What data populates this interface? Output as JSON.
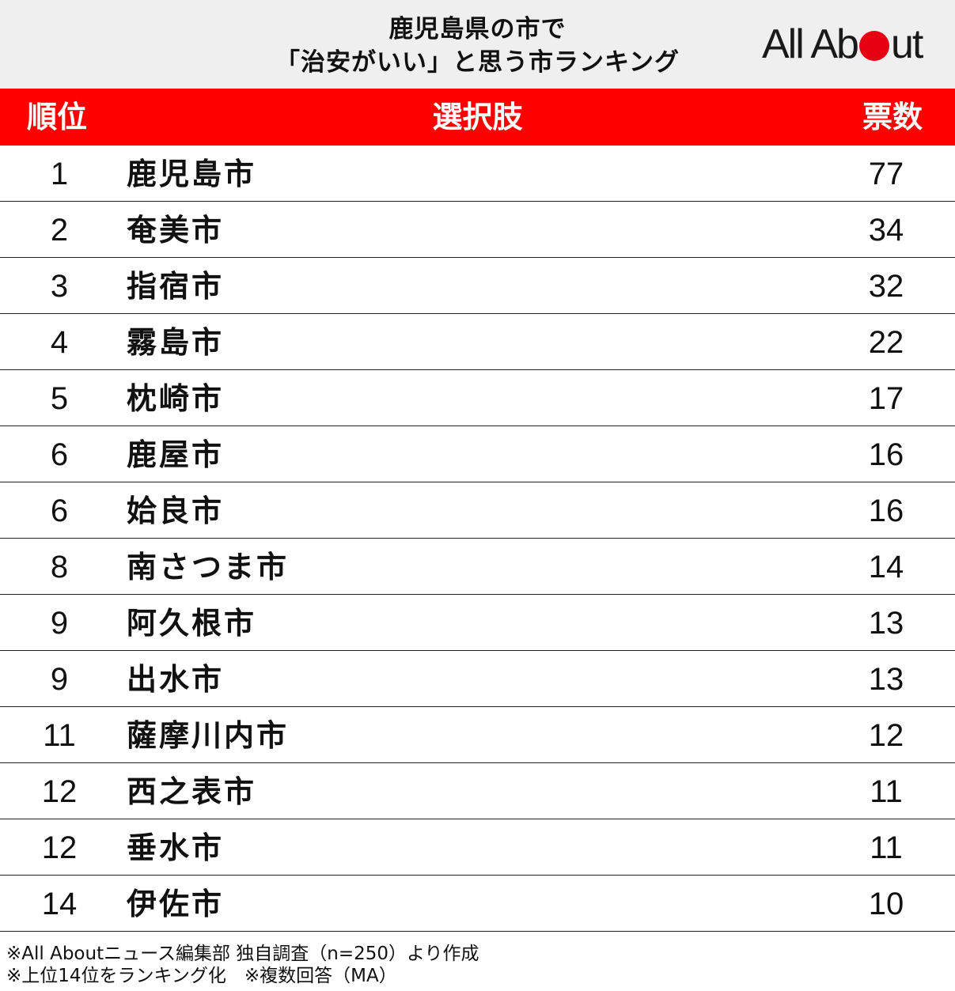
{
  "header": {
    "title_line1": "鹿児島県の市で",
    "title_line2": "「治安がいい」と思う市ランキング",
    "logo_left": "All Ab",
    "logo_right": "ut"
  },
  "columns": {
    "rank": "順位",
    "choice": "選択肢",
    "votes": "票数"
  },
  "rows": [
    {
      "rank": "1",
      "name": "鹿児島市",
      "votes": "77"
    },
    {
      "rank": "2",
      "name": "奄美市",
      "votes": "34"
    },
    {
      "rank": "3",
      "name": "指宿市",
      "votes": "32"
    },
    {
      "rank": "4",
      "name": "霧島市",
      "votes": "22"
    },
    {
      "rank": "5",
      "name": "枕崎市",
      "votes": "17"
    },
    {
      "rank": "6",
      "name": "鹿屋市",
      "votes": "16"
    },
    {
      "rank": "6",
      "name": "姶良市",
      "votes": "16"
    },
    {
      "rank": "8",
      "name": "南さつま市",
      "votes": "14"
    },
    {
      "rank": "9",
      "name": "阿久根市",
      "votes": "13"
    },
    {
      "rank": "9",
      "name": "出水市",
      "votes": "13"
    },
    {
      "rank": "11",
      "name": "薩摩川内市",
      "votes": "12"
    },
    {
      "rank": "12",
      "name": "西之表市",
      "votes": "11"
    },
    {
      "rank": "12",
      "name": "垂水市",
      "votes": "11"
    },
    {
      "rank": "14",
      "name": "伊佐市",
      "votes": "10"
    }
  ],
  "notes": {
    "line1": "※All Aboutニュース編集部 独自調査（n=250）より作成",
    "line2": "※上位14位をランキング化　※複数回答（MA）"
  },
  "colors": {
    "header_bg": "#efefef",
    "column_header_bg": "#ff0000",
    "logo_dot": "#e60012"
  }
}
